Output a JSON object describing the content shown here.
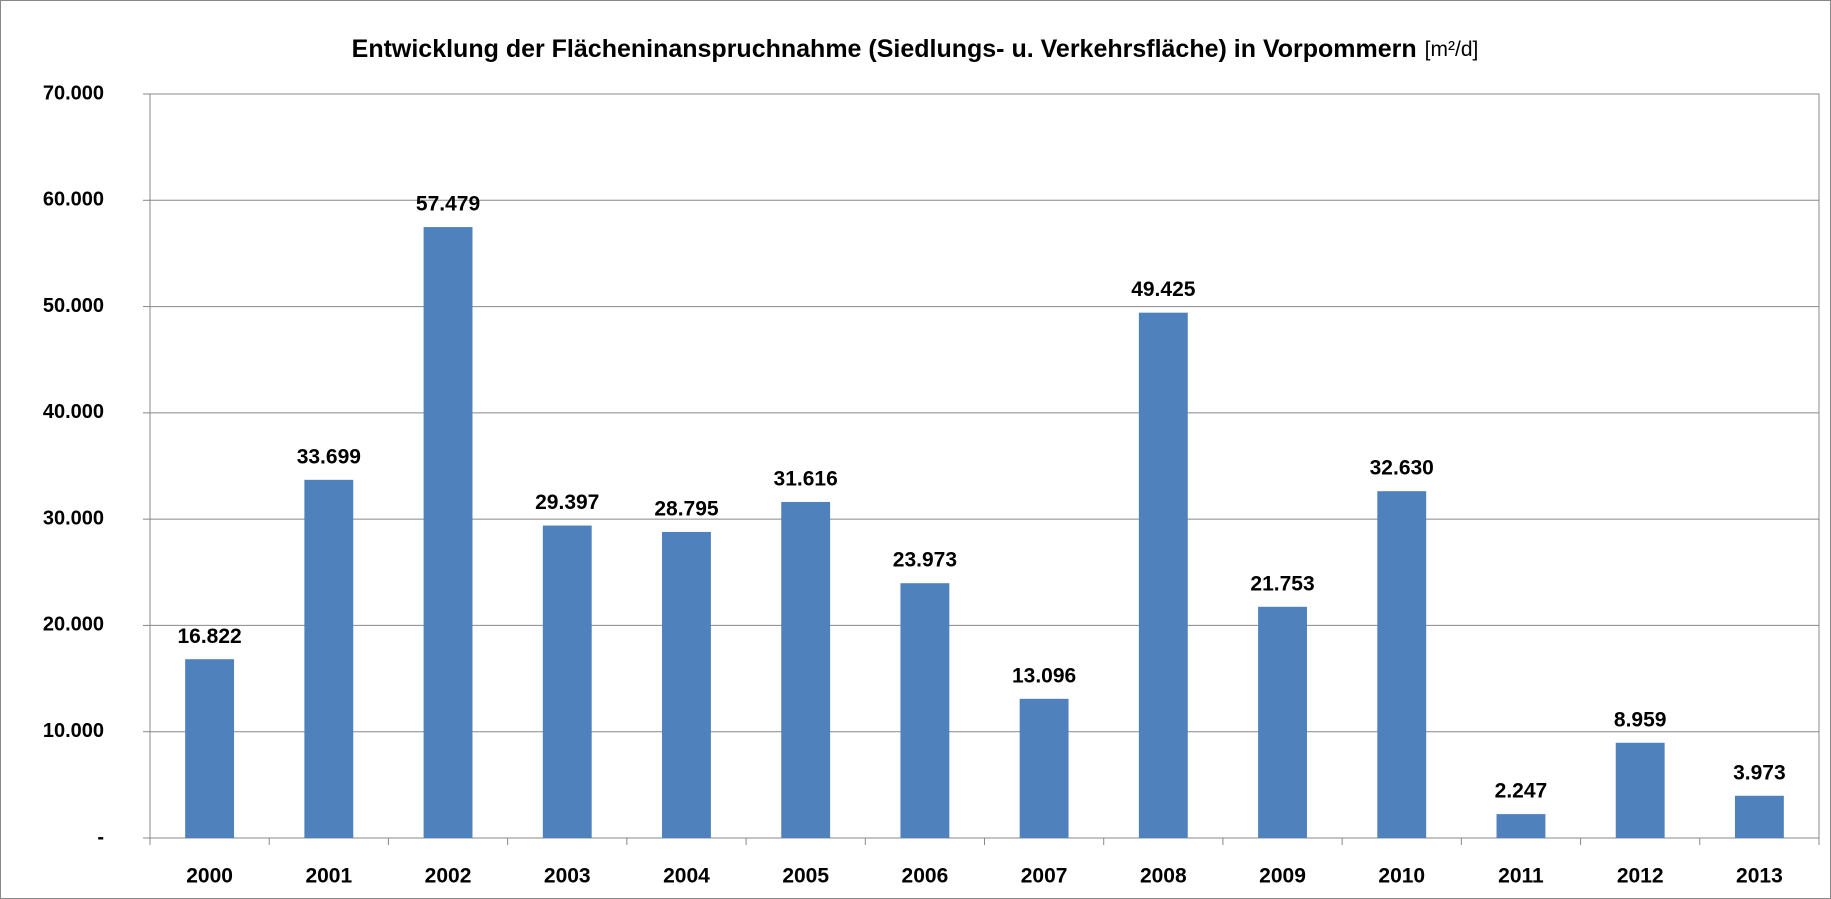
{
  "chart_data": {
    "type": "bar",
    "title": "Entwicklung der Flächeninanspruchnahme (Siedlungs- u. Verkehrsfläche) in Vorpommern",
    "unit": "[m²/d]",
    "categories": [
      "2000",
      "2001",
      "2002",
      "2003",
      "2004",
      "2005",
      "2006",
      "2007",
      "2008",
      "2009",
      "2010",
      "2011",
      "2012",
      "2013"
    ],
    "values": [
      16822,
      33699,
      57479,
      29397,
      28795,
      31616,
      23973,
      13096,
      49425,
      21753,
      32630,
      2247,
      8959,
      3973
    ],
    "value_labels": [
      "16.822",
      "33.699",
      "57.479",
      "29.397",
      "28.795",
      "31.616",
      "23.973",
      "13.096",
      "49.425",
      "21.753",
      "32.630",
      "2.247",
      "8.959",
      "3.973"
    ],
    "color": "#4f81bd",
    "ylim": [
      0,
      70000
    ],
    "yticks": [
      {
        "value": 0,
        "label": "-"
      },
      {
        "value": 10000,
        "label": "10.000"
      },
      {
        "value": 20000,
        "label": "20.000"
      },
      {
        "value": 30000,
        "label": "30.000"
      },
      {
        "value": 40000,
        "label": "40.000"
      },
      {
        "value": 50000,
        "label": "50.000"
      },
      {
        "value": 60000,
        "label": "60.000"
      },
      {
        "value": 70000,
        "label": "70.000"
      }
    ],
    "grid": true
  }
}
